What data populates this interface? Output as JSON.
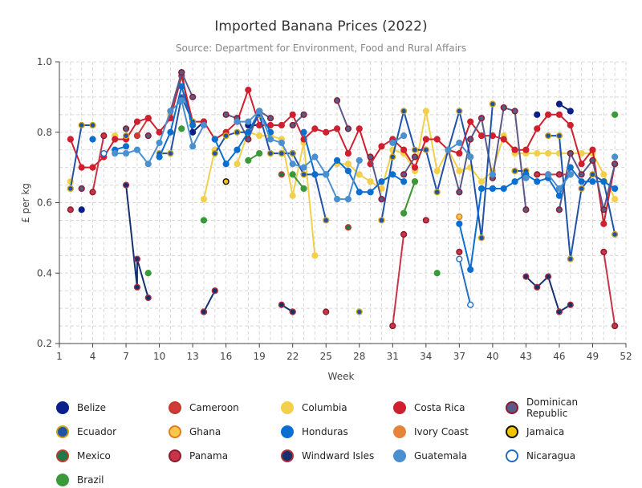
{
  "chart_data": {
    "type": "line",
    "title": "Imported Banana Prices (2022)",
    "subtitle": "Source: Department for Environment, Food and Rural Affairs",
    "xlabel": "Week",
    "ylabel": "£ per kg",
    "xlim": [
      1,
      52
    ],
    "ylim": [
      0.2,
      1.0
    ],
    "xticks": [
      1,
      4,
      7,
      10,
      13,
      16,
      19,
      22,
      25,
      28,
      31,
      34,
      37,
      40,
      43,
      46,
      49,
      52
    ],
    "yticks": [
      0.2,
      0.4,
      0.6,
      0.8,
      1.0
    ],
    "ytick_labels": [
      "0.2",
      "0.4",
      "0.6",
      "0.8",
      "1.0"
    ],
    "grid": true,
    "legend_position": "bottom",
    "series": [
      {
        "name": "Belize",
        "color": "#0b1f8a",
        "outline": "#0b1f8a",
        "points": [
          [
            3,
            0.58
          ],
          [
            12,
            0.97
          ],
          [
            13,
            0.8
          ],
          [
            14,
            0.83
          ],
          [
            18,
            0.82
          ],
          [
            19,
            0.82
          ],
          [
            22,
            0.74
          ],
          [
            44,
            0.85
          ],
          [
            46,
            0.88
          ],
          [
            47,
            0.86
          ]
        ]
      },
      {
        "name": "Cameroon",
        "color": "#d23a3a",
        "outline": "#c0392b",
        "points": [
          [
            8,
            0.79
          ],
          [
            9,
            0.84
          ]
        ]
      },
      {
        "name": "Columbia",
        "color": "#f2d04b",
        "outline": "#f2d04b",
        "points": [
          [
            2,
            0.66
          ],
          [
            4,
            0.7
          ],
          [
            6,
            0.79
          ],
          [
            11,
            0.85
          ],
          [
            14,
            0.61
          ],
          [
            15,
            0.75
          ],
          [
            17,
            0.71
          ],
          [
            18,
            0.8
          ],
          [
            19,
            0.79
          ],
          [
            20,
            0.79
          ],
          [
            21,
            0.78
          ],
          [
            22,
            0.62
          ],
          [
            23,
            0.77
          ],
          [
            24,
            0.45
          ],
          [
            26,
            0.71
          ],
          [
            27,
            0.71
          ],
          [
            28,
            0.68
          ],
          [
            29,
            0.66
          ],
          [
            30,
            0.64
          ],
          [
            31,
            0.75
          ],
          [
            32,
            0.74
          ],
          [
            33,
            0.69
          ],
          [
            34,
            0.86
          ],
          [
            35,
            0.69
          ],
          [
            36,
            0.75
          ],
          [
            37,
            0.69
          ],
          [
            38,
            0.7
          ],
          [
            39,
            0.66
          ],
          [
            40,
            0.69
          ],
          [
            41,
            0.79
          ],
          [
            42,
            0.74
          ],
          [
            43,
            0.74
          ],
          [
            44,
            0.74
          ],
          [
            45,
            0.74
          ],
          [
            46,
            0.74
          ],
          [
            47,
            0.74
          ],
          [
            48,
            0.74
          ],
          [
            49,
            0.74
          ],
          [
            50,
            0.68
          ],
          [
            51,
            0.61
          ]
        ]
      },
      {
        "name": "Costa Rica",
        "color": "#d01f2f",
        "outline": "#d01f2f",
        "points": [
          [
            2,
            0.78
          ],
          [
            3,
            0.7
          ],
          [
            4,
            0.7
          ],
          [
            5,
            0.73
          ],
          [
            6,
            0.78
          ],
          [
            7,
            0.78
          ],
          [
            8,
            0.83
          ],
          [
            9,
            0.84
          ],
          [
            10,
            0.8
          ],
          [
            11,
            0.84
          ],
          [
            12,
            0.96
          ],
          [
            13,
            0.83
          ],
          [
            14,
            0.83
          ],
          [
            15,
            0.78
          ],
          [
            16,
            0.8
          ],
          [
            17,
            0.83
          ],
          [
            18,
            0.92
          ],
          [
            19,
            0.82
          ],
          [
            20,
            0.82
          ],
          [
            21,
            0.82
          ],
          [
            22,
            0.85
          ],
          [
            23,
            0.78
          ],
          [
            24,
            0.81
          ],
          [
            25,
            0.8
          ],
          [
            26,
            0.81
          ],
          [
            27,
            0.74
          ],
          [
            28,
            0.81
          ],
          [
            29,
            0.71
          ],
          [
            30,
            0.76
          ],
          [
            31,
            0.78
          ],
          [
            32,
            0.75
          ],
          [
            33,
            0.7
          ],
          [
            34,
            0.78
          ],
          [
            35,
            0.78
          ],
          [
            36,
            0.75
          ],
          [
            37,
            0.74
          ],
          [
            38,
            0.83
          ],
          [
            39,
            0.79
          ],
          [
            40,
            0.79
          ],
          [
            41,
            0.78
          ],
          [
            42,
            0.75
          ],
          [
            43,
            0.75
          ],
          [
            44,
            0.81
          ],
          [
            45,
            0.85
          ],
          [
            46,
            0.85
          ],
          [
            47,
            0.82
          ],
          [
            48,
            0.71
          ],
          [
            49,
            0.75
          ],
          [
            50,
            0.54
          ],
          [
            51,
            0.71
          ]
        ]
      },
      {
        "name": "Dominican Republic",
        "color": "#5a5a8a",
        "outline": "#8b1a2a",
        "points": [
          [
            3,
            0.64
          ],
          [
            7,
            0.81
          ],
          [
            9,
            0.79
          ],
          [
            11,
            0.86
          ],
          [
            12,
            0.97
          ],
          [
            13,
            0.9
          ],
          [
            16,
            0.85
          ],
          [
            17,
            0.84
          ],
          [
            18,
            0.78
          ],
          [
            19,
            0.86
          ],
          [
            20,
            0.84
          ],
          [
            22,
            0.82
          ],
          [
            23,
            0.85
          ],
          [
            26,
            0.89
          ],
          [
            27,
            0.81
          ],
          [
            29,
            0.73
          ],
          [
            30,
            0.61
          ],
          [
            32,
            0.68
          ],
          [
            33,
            0.73
          ],
          [
            36,
            0.75
          ],
          [
            37,
            0.63
          ],
          [
            38,
            0.78
          ],
          [
            39,
            0.84
          ],
          [
            40,
            0.67
          ],
          [
            41,
            0.87
          ],
          [
            42,
            0.86
          ],
          [
            43,
            0.58
          ],
          [
            46,
            0.58
          ],
          [
            47,
            0.74
          ],
          [
            48,
            0.68
          ],
          [
            49,
            0.72
          ],
          [
            50,
            0.58
          ],
          [
            51,
            0.71
          ]
        ]
      },
      {
        "name": "Ecuador",
        "color": "#1f52a8",
        "outline": "#caa21a",
        "points": [
          [
            2,
            0.64
          ],
          [
            3,
            0.82
          ],
          [
            4,
            0.82
          ],
          [
            7,
            0.79
          ],
          [
            10,
            0.74
          ],
          [
            11,
            0.74
          ],
          [
            12,
            0.9
          ],
          [
            13,
            0.83
          ],
          [
            15,
            0.74
          ],
          [
            16,
            0.79
          ],
          [
            17,
            0.8
          ],
          [
            18,
            0.8
          ],
          [
            19,
            0.85
          ],
          [
            20,
            0.74
          ],
          [
            21,
            0.74
          ],
          [
            22,
            0.74
          ],
          [
            23,
            0.68
          ],
          [
            24,
            0.68
          ],
          [
            25,
            0.55
          ],
          [
            28,
            0.29
          ],
          [
            30,
            0.55
          ],
          [
            31,
            0.73
          ],
          [
            32,
            0.86
          ],
          [
            33,
            0.75
          ],
          [
            34,
            0.75
          ],
          [
            35,
            0.63
          ],
          [
            36,
            0.75
          ],
          [
            37,
            0.86
          ],
          [
            38,
            0.73
          ],
          [
            39,
            0.5
          ],
          [
            40,
            0.88
          ],
          [
            42,
            0.69
          ],
          [
            43,
            0.69
          ],
          [
            45,
            0.79
          ],
          [
            46,
            0.79
          ],
          [
            47,
            0.44
          ],
          [
            48,
            0.64
          ],
          [
            49,
            0.68
          ],
          [
            50,
            0.66
          ],
          [
            51,
            0.51
          ]
        ]
      },
      {
        "name": "Ghana",
        "color": "#f7c948",
        "outline": "#e07b20",
        "points": [
          [
            37,
            0.56
          ]
        ]
      },
      {
        "name": "Honduras",
        "color": "#0a6fd1",
        "outline": "#0a6fd1",
        "points": [
          [
            4,
            0.78
          ],
          [
            6,
            0.75
          ],
          [
            7,
            0.76
          ],
          [
            10,
            0.73
          ],
          [
            11,
            0.8
          ],
          [
            12,
            0.93
          ],
          [
            13,
            0.82
          ],
          [
            15,
            0.78
          ],
          [
            16,
            0.71
          ],
          [
            17,
            0.75
          ],
          [
            18,
            0.8
          ],
          [
            19,
            0.86
          ],
          [
            20,
            0.8
          ],
          [
            23,
            0.8
          ],
          [
            24,
            0.68
          ],
          [
            25,
            0.68
          ],
          [
            26,
            0.72
          ],
          [
            27,
            0.69
          ],
          [
            28,
            0.63
          ],
          [
            29,
            0.63
          ],
          [
            30,
            0.66
          ],
          [
            31,
            0.68
          ],
          [
            32,
            0.66
          ],
          [
            37,
            0.54
          ],
          [
            38,
            0.41
          ],
          [
            39,
            0.64
          ],
          [
            40,
            0.64
          ],
          [
            41,
            0.64
          ],
          [
            42,
            0.66
          ],
          [
            43,
            0.68
          ],
          [
            44,
            0.66
          ],
          [
            45,
            0.67
          ],
          [
            46,
            0.62
          ],
          [
            47,
            0.7
          ],
          [
            48,
            0.66
          ],
          [
            49,
            0.66
          ],
          [
            50,
            0.66
          ],
          [
            51,
            0.64
          ]
        ]
      },
      {
        "name": "Ivory Coast",
        "color": "#e8833a",
        "outline": "#e8833a",
        "points": [
          [
            32,
            0.57
          ],
          [
            33,
            0.66
          ]
        ]
      },
      {
        "name": "Jamaica",
        "color": "#f2c400",
        "outline": "#111111",
        "points": [
          [
            16,
            0.66
          ]
        ]
      },
      {
        "name": "Mexico",
        "color": "#1a7a4a",
        "outline": "#c0392b",
        "points": [
          [
            21,
            0.68
          ],
          [
            27,
            0.53
          ]
        ]
      },
      {
        "name": "Panama",
        "color": "#c9344a",
        "outline": "#8b1a2a",
        "points": [
          [
            2,
            0.58
          ],
          [
            4,
            0.63
          ],
          [
            5,
            0.79
          ],
          [
            14,
            0.29
          ],
          [
            22,
            0.29
          ],
          [
            25,
            0.29
          ],
          [
            31,
            0.25
          ],
          [
            32,
            0.51
          ],
          [
            34,
            0.55
          ],
          [
            37,
            0.46
          ],
          [
            44,
            0.68
          ],
          [
            45,
            0.68
          ],
          [
            46,
            0.68
          ],
          [
            47,
            0.68
          ],
          [
            50,
            0.46
          ],
          [
            51,
            0.25
          ]
        ]
      },
      {
        "name": "Windward Isles",
        "color": "#14306e",
        "outline": "#b02a3a",
        "points": [
          [
            7,
            0.65
          ],
          [
            8,
            0.36
          ],
          [
            8,
            0.44
          ],
          [
            9,
            0.33
          ],
          [
            14,
            0.29
          ],
          [
            15,
            0.35
          ],
          [
            21,
            0.31
          ],
          [
            22,
            0.29
          ],
          [
            43,
            0.39
          ],
          [
            44,
            0.36
          ],
          [
            45,
            0.39
          ],
          [
            46,
            0.29
          ],
          [
            47,
            0.31
          ]
        ]
      },
      {
        "name": "Guatemala",
        "color": "#4a90d0",
        "outline": "#4a90d0",
        "points": [
          [
            6,
            0.74
          ],
          [
            7,
            0.74
          ],
          [
            8,
            0.75
          ],
          [
            9,
            0.71
          ],
          [
            10,
            0.77
          ],
          [
            11,
            0.86
          ],
          [
            12,
            0.89
          ],
          [
            13,
            0.76
          ],
          [
            14,
            0.82
          ],
          [
            17,
            0.83
          ],
          [
            18,
            0.83
          ],
          [
            19,
            0.86
          ],
          [
            20,
            0.78
          ],
          [
            21,
            0.77
          ],
          [
            22,
            0.71
          ],
          [
            23,
            0.7
          ],
          [
            24,
            0.73
          ],
          [
            25,
            0.68
          ],
          [
            26,
            0.61
          ],
          [
            27,
            0.61
          ],
          [
            28,
            0.72
          ],
          [
            31,
            0.77
          ],
          [
            32,
            0.79
          ],
          [
            36,
            0.75
          ],
          [
            37,
            0.77
          ],
          [
            38,
            0.73
          ],
          [
            40,
            0.68
          ],
          [
            43,
            0.67
          ],
          [
            45,
            0.68
          ],
          [
            46,
            0.64
          ],
          [
            47,
            0.68
          ],
          [
            51,
            0.73
          ]
        ]
      },
      {
        "name": "Nicaragua",
        "color": "#ffffff",
        "outline": "#1f6fc0",
        "points": [
          [
            5,
            0.74
          ],
          [
            37,
            0.44
          ],
          [
            38,
            0.31
          ]
        ]
      },
      {
        "name": "Brazil",
        "color": "#3a9a3a",
        "outline": "#3a9a3a",
        "points": [
          [
            9,
            0.4
          ],
          [
            12,
            0.81
          ],
          [
            14,
            0.55
          ],
          [
            18,
            0.72
          ],
          [
            19,
            0.74
          ],
          [
            22,
            0.68
          ],
          [
            23,
            0.64
          ],
          [
            32,
            0.57
          ],
          [
            33,
            0.66
          ],
          [
            35,
            0.4
          ],
          [
            51,
            0.85
          ]
        ]
      }
    ]
  }
}
